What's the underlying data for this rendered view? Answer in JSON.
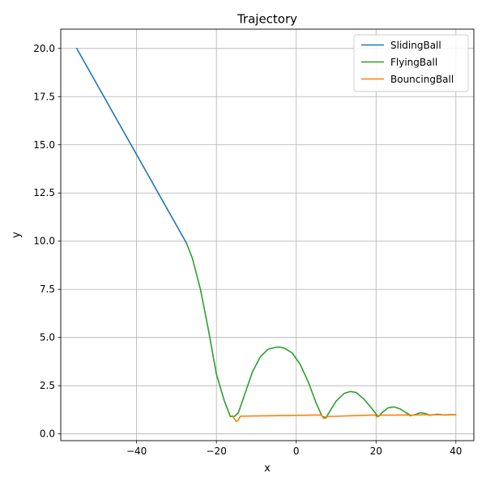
{
  "chart_data": {
    "type": "line",
    "title": "Trajectory",
    "xlabel": "x",
    "ylabel": "y",
    "xlim": [
      -59,
      44.5
    ],
    "ylim": [
      -0.35,
      21.0
    ],
    "xticks": [
      -40,
      -20,
      0,
      20,
      40
    ],
    "xtick_labels": [
      "−40",
      "−20",
      "0",
      "20",
      "40"
    ],
    "yticks": [
      0,
      2.5,
      5,
      7.5,
      10,
      12.5,
      15,
      17.5,
      20
    ],
    "ytick_labels": [
      "0.0",
      "2.5",
      "5.0",
      "7.5",
      "10.0",
      "12.5",
      "15.0",
      "17.5",
      "20.0"
    ],
    "grid": true,
    "legend_position": "top-right",
    "series": [
      {
        "name": "SlidingBall",
        "color": "#1f77b4",
        "x": [
          -55.0,
          -27.5
        ],
        "y": [
          20.0,
          9.9
        ]
      },
      {
        "name": "FlyingBall",
        "color": "#2ca02c",
        "x": [
          -27.5,
          -26.0,
          -24.0,
          -22.0,
          -20.0,
          -18.0,
          -16.5,
          -15.5,
          -14.5,
          -13.0,
          -11.0,
          -9.0,
          -7.0,
          -5.0,
          -4.0,
          -3.0,
          -1.0,
          1.0,
          3.0,
          5.0,
          6.5,
          7.5,
          8.5,
          10.0,
          12.0,
          13.5,
          15.0,
          17.0,
          19.0,
          20.5,
          21.5,
          23.0,
          24.5,
          26.0,
          27.5,
          28.8,
          29.8,
          31.0,
          32.5,
          33.5,
          34.5,
          35.5,
          36.5,
          37.5,
          38.5,
          40.0
        ],
        "y": [
          9.9,
          9.1,
          7.5,
          5.4,
          3.1,
          1.7,
          0.9,
          0.9,
          1.1,
          2.0,
          3.2,
          4.0,
          4.4,
          4.5,
          4.5,
          4.45,
          4.2,
          3.6,
          2.7,
          1.6,
          0.9,
          0.85,
          1.2,
          1.7,
          2.1,
          2.2,
          2.15,
          1.8,
          1.3,
          0.9,
          1.1,
          1.35,
          1.4,
          1.3,
          1.1,
          0.95,
          1.0,
          1.1,
          1.05,
          0.97,
          1.0,
          1.02,
          0.99,
          0.98,
          1.0,
          1.0
        ]
      },
      {
        "name": "BouncingBall",
        "color": "#ff7f0e",
        "x": [
          -16.0,
          -15.5,
          -15.0,
          -14.5,
          -14.0,
          6.3,
          6.8,
          7.3,
          7.8,
          19.8,
          20.2,
          20.6,
          21.0,
          28.2,
          28.6,
          29.0,
          32.8,
          33.2,
          33.6,
          37.5,
          38.0,
          38.5,
          40.0
        ],
        "y": [
          0.95,
          0.78,
          0.65,
          0.72,
          0.92,
          0.98,
          0.82,
          0.8,
          0.9,
          0.98,
          0.88,
          0.9,
          0.97,
          0.98,
          0.93,
          0.97,
          1.0,
          0.97,
          0.99,
          0.99,
          0.98,
          0.99,
          0.99
        ]
      }
    ]
  }
}
